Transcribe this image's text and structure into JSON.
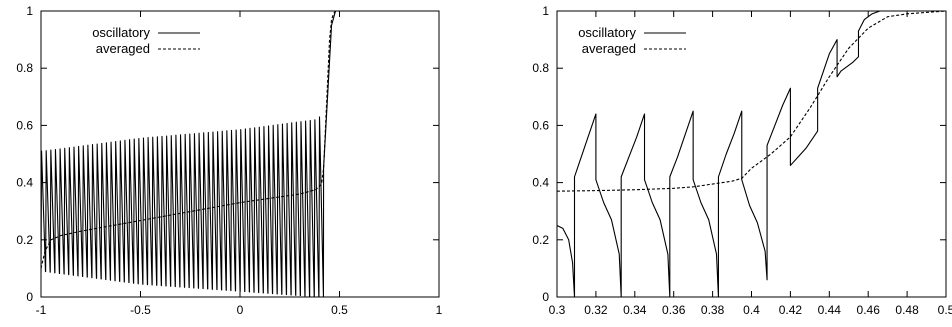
{
  "chart_data": [
    {
      "type": "line",
      "title": "",
      "xlabel": "",
      "ylabel": "",
      "xlim": [
        -1,
        1
      ],
      "ylim": [
        0,
        1
      ],
      "x_ticks": [
        "-1",
        "-0.5",
        "0",
        "0.5",
        "1"
      ],
      "y_ticks": [
        "0",
        "0.2",
        "0.4",
        "0.6",
        "0.8",
        "1"
      ],
      "grid": false,
      "legend_position": "top-left",
      "series": [
        {
          "name": "oscillatory",
          "style": "solid",
          "description_values": {
            "oscillation_x_range": [
              -1,
              0.42
            ],
            "peak_envelope": [
              [
                -0.99,
                0.51
              ],
              [
                -0.5,
                0.555
              ],
              [
                0.0,
                0.585
              ],
              [
                0.38,
                0.62
              ],
              [
                0.42,
                0.64
              ]
            ],
            "trough_envelope": [
              [
                -0.99,
                0.09
              ],
              [
                -0.5,
                0.045
              ],
              [
                0.0,
                0.02
              ],
              [
                0.4,
                0.0
              ]
            ],
            "transition": [
              [
                0.42,
                0.45
              ],
              [
                0.44,
                0.7
              ],
              [
                0.46,
                0.95
              ],
              [
                0.48,
                1.0
              ],
              [
                1.0,
                1.0
              ]
            ]
          }
        },
        {
          "name": "averaged",
          "style": "dashed",
          "x": [
            -1.0,
            -0.98,
            -0.95,
            -0.9,
            -0.8,
            -0.6,
            -0.4,
            -0.2,
            0.0,
            0.2,
            0.3,
            0.38,
            0.41,
            0.42,
            0.43,
            0.44,
            0.45,
            0.46,
            0.47,
            0.48,
            0.5,
            0.7,
            1.0
          ],
          "y": [
            0.1,
            0.16,
            0.2,
            0.215,
            0.23,
            0.255,
            0.28,
            0.305,
            0.33,
            0.35,
            0.36,
            0.375,
            0.395,
            0.45,
            0.6,
            0.75,
            0.9,
            0.97,
            0.99,
            1.0,
            1.0,
            1.0,
            1.0
          ]
        }
      ]
    },
    {
      "type": "line",
      "title": "",
      "xlabel": "",
      "ylabel": "",
      "xlim": [
        0.3,
        0.5
      ],
      "ylim": [
        0,
        1
      ],
      "x_ticks": [
        "0.3",
        "0.32",
        "0.34",
        "0.36",
        "0.38",
        "0.4",
        "0.42",
        "0.44",
        "0.46",
        "0.48",
        "0.5"
      ],
      "y_ticks": [
        "0",
        "0.2",
        "0.4",
        "0.6",
        "0.8",
        "1"
      ],
      "grid": false,
      "legend_position": "top-left",
      "series": [
        {
          "name": "oscillatory",
          "style": "solid",
          "x": [
            0.3,
            0.303,
            0.306,
            0.308,
            0.309,
            0.309,
            0.312,
            0.316,
            0.32,
            0.32,
            0.324,
            0.328,
            0.332,
            0.333,
            0.333,
            0.337,
            0.341,
            0.345,
            0.345,
            0.349,
            0.353,
            0.357,
            0.358,
            0.358,
            0.362,
            0.366,
            0.37,
            0.37,
            0.374,
            0.378,
            0.382,
            0.383,
            0.383,
            0.387,
            0.391,
            0.395,
            0.395,
            0.399,
            0.403,
            0.407,
            0.408,
            0.408,
            0.412,
            0.416,
            0.42,
            0.42,
            0.424,
            0.428,
            0.432,
            0.434,
            0.434,
            0.437,
            0.44,
            0.444,
            0.444,
            0.446,
            0.448,
            0.45,
            0.452,
            0.455,
            0.455,
            0.458,
            0.462,
            0.466,
            0.47,
            0.48,
            0.49,
            0.5
          ],
          "y": [
            0.25,
            0.24,
            0.2,
            0.12,
            0.0,
            0.42,
            0.48,
            0.56,
            0.64,
            0.41,
            0.33,
            0.27,
            0.15,
            0.0,
            0.42,
            0.49,
            0.56,
            0.64,
            0.41,
            0.33,
            0.27,
            0.15,
            0.0,
            0.42,
            0.49,
            0.57,
            0.65,
            0.41,
            0.33,
            0.27,
            0.15,
            0.0,
            0.42,
            0.5,
            0.57,
            0.65,
            0.41,
            0.32,
            0.26,
            0.16,
            0.06,
            0.53,
            0.6,
            0.67,
            0.73,
            0.46,
            0.49,
            0.52,
            0.56,
            0.58,
            0.73,
            0.79,
            0.85,
            0.9,
            0.77,
            0.79,
            0.8,
            0.81,
            0.82,
            0.84,
            0.93,
            0.97,
            0.99,
            1.0,
            1.0,
            1.0,
            1.0,
            1.0
          ]
        },
        {
          "name": "averaged",
          "style": "dashed",
          "x": [
            0.3,
            0.32,
            0.34,
            0.36,
            0.37,
            0.38,
            0.39,
            0.395,
            0.4,
            0.41,
            0.42,
            0.43,
            0.44,
            0.45,
            0.46,
            0.47,
            0.48,
            0.5
          ],
          "y": [
            0.37,
            0.372,
            0.375,
            0.38,
            0.385,
            0.395,
            0.405,
            0.415,
            0.45,
            0.5,
            0.56,
            0.66,
            0.77,
            0.87,
            0.94,
            0.98,
            0.99,
            1.0
          ]
        }
      ]
    }
  ]
}
